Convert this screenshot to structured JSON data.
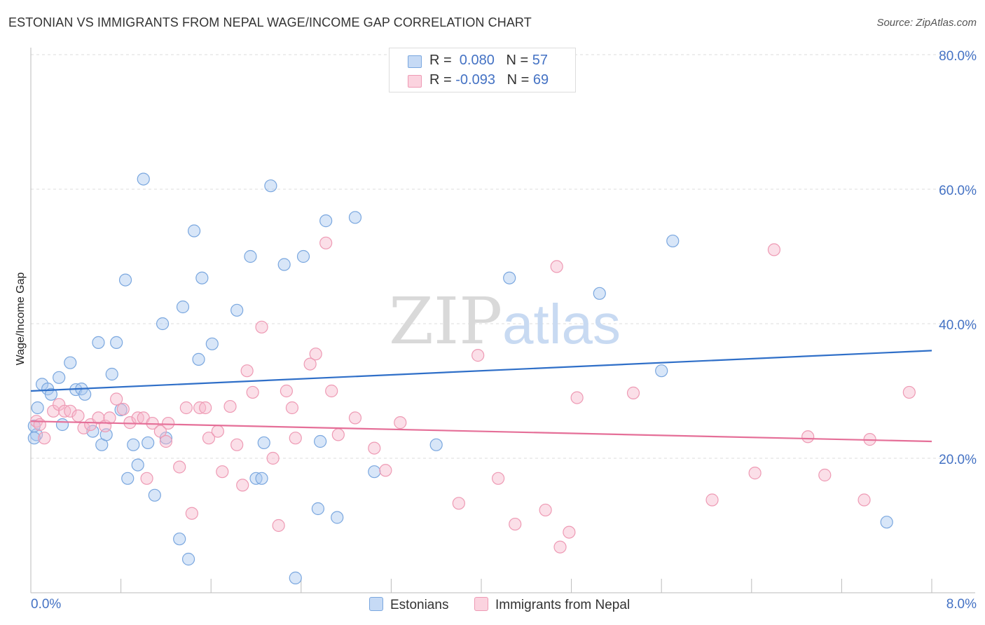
{
  "header": {
    "title": "ESTONIAN VS IMMIGRANTS FROM NEPAL WAGE/INCOME GAP CORRELATION CHART",
    "source": "Source: ZipAtlas.com"
  },
  "watermark": {
    "zip": "ZIP",
    "atlas": "atlas"
  },
  "colors": {
    "estonian_fill": "#a9c8ef",
    "estonian_stroke": "#7aa7df",
    "estonian_line": "#2f6fc8",
    "nepal_fill": "#f6b8cb",
    "nepal_stroke": "#ee9ab4",
    "nepal_line": "#e56f98",
    "tick_label": "#4472c4",
    "grid": "#dddddd"
  },
  "legend_top": {
    "rows": [
      {
        "r_label": "R = ",
        "r_value": " 0.080",
        "n_label": "N = ",
        "n_value": "57"
      },
      {
        "r_label": "R = ",
        "r_value": "-0.093",
        "n_label": "N = ",
        "n_value": "69"
      }
    ]
  },
  "legend_bottom": {
    "items": [
      {
        "label": "Estonians"
      },
      {
        "label": "Immigrants from Nepal"
      }
    ]
  },
  "chart_data": {
    "type": "scatter",
    "title": "ESTONIAN VS IMMIGRANTS FROM NEPAL WAGE/INCOME GAP CORRELATION CHART",
    "xlabel": "",
    "ylabel": "Wage/Income Gap",
    "xlim": [
      0,
      8
    ],
    "ylim": [
      0,
      80
    ],
    "x_tick_labels": [
      "0.0%",
      "8.0%"
    ],
    "y_ticks": [
      20,
      40,
      60,
      80
    ],
    "y_tick_labels": [
      "20.0%",
      "40.0%",
      "60.0%",
      "80.0%"
    ],
    "grid": true,
    "legend_position": "top-center",
    "series": [
      {
        "name": "Estonians",
        "r": 0.08,
        "n": 57,
        "trend": {
          "x": [
            0,
            8
          ],
          "y": [
            30.0,
            36.0
          ]
        },
        "points": [
          [
            0.05,
            23.5
          ],
          [
            0.06,
            27.5
          ],
          [
            0.1,
            31.0
          ],
          [
            0.15,
            30.3
          ],
          [
            0.18,
            29.5
          ],
          [
            0.25,
            32.0
          ],
          [
            0.28,
            25.0
          ],
          [
            0.35,
            34.2
          ],
          [
            0.4,
            30.2
          ],
          [
            0.45,
            30.3
          ],
          [
            0.48,
            29.5
          ],
          [
            0.55,
            24.0
          ],
          [
            0.6,
            37.2
          ],
          [
            0.63,
            22.0
          ],
          [
            0.67,
            23.5
          ],
          [
            0.72,
            32.5
          ],
          [
            0.76,
            37.2
          ],
          [
            0.8,
            27.2
          ],
          [
            0.84,
            46.5
          ],
          [
            0.86,
            17.0
          ],
          [
            0.91,
            22.0
          ],
          [
            0.95,
            19.0
          ],
          [
            1.0,
            61.5
          ],
          [
            1.04,
            22.3
          ],
          [
            1.1,
            14.5
          ],
          [
            1.17,
            40.0
          ],
          [
            1.2,
            23.0
          ],
          [
            1.32,
            8.0
          ],
          [
            1.35,
            42.5
          ],
          [
            1.4,
            5.0
          ],
          [
            1.45,
            53.8
          ],
          [
            1.49,
            34.7
          ],
          [
            1.52,
            46.8
          ],
          [
            1.61,
            37.0
          ],
          [
            1.83,
            42.0
          ],
          [
            1.95,
            50.0
          ],
          [
            2.0,
            17.0
          ],
          [
            2.05,
            17.0
          ],
          [
            2.07,
            22.3
          ],
          [
            2.13,
            60.5
          ],
          [
            2.25,
            48.8
          ],
          [
            2.35,
            2.2
          ],
          [
            2.42,
            50.0
          ],
          [
            2.55,
            12.5
          ],
          [
            2.57,
            22.5
          ],
          [
            2.62,
            55.3
          ],
          [
            2.72,
            11.2
          ],
          [
            2.88,
            55.8
          ],
          [
            3.05,
            18.0
          ],
          [
            3.6,
            22.0
          ],
          [
            4.25,
            46.8
          ],
          [
            5.05,
            44.5
          ],
          [
            5.6,
            33.0
          ],
          [
            5.7,
            52.3
          ],
          [
            7.6,
            10.5
          ],
          [
            0.03,
            24.8
          ],
          [
            0.03,
            23.0
          ]
        ]
      },
      {
        "name": "Immigrants from Nepal",
        "r": -0.093,
        "n": 69,
        "trend": {
          "x": [
            0,
            8
          ],
          "y": [
            25.5,
            22.5
          ]
        },
        "points": [
          [
            0.05,
            25.5
          ],
          [
            0.08,
            25.0
          ],
          [
            0.12,
            23.0
          ],
          [
            0.2,
            27.0
          ],
          [
            0.25,
            28.0
          ],
          [
            0.3,
            27.0
          ],
          [
            0.35,
            27.0
          ],
          [
            0.42,
            26.3
          ],
          [
            0.47,
            24.5
          ],
          [
            0.53,
            25.0
          ],
          [
            0.6,
            26.0
          ],
          [
            0.66,
            24.8
          ],
          [
            0.7,
            26.0
          ],
          [
            0.76,
            28.8
          ],
          [
            0.82,
            27.3
          ],
          [
            0.88,
            25.3
          ],
          [
            0.95,
            26.0
          ],
          [
            1.0,
            26.0
          ],
          [
            1.03,
            17.0
          ],
          [
            1.08,
            25.2
          ],
          [
            1.15,
            24.0
          ],
          [
            1.2,
            22.5
          ],
          [
            1.22,
            25.2
          ],
          [
            1.32,
            18.7
          ],
          [
            1.38,
            27.5
          ],
          [
            1.43,
            11.8
          ],
          [
            1.5,
            27.5
          ],
          [
            1.55,
            27.5
          ],
          [
            1.58,
            23.0
          ],
          [
            1.66,
            24.0
          ],
          [
            1.7,
            18.0
          ],
          [
            1.77,
            27.7
          ],
          [
            1.83,
            22.0
          ],
          [
            1.88,
            16.0
          ],
          [
            1.92,
            33.0
          ],
          [
            1.97,
            29.8
          ],
          [
            2.05,
            39.5
          ],
          [
            2.15,
            20.0
          ],
          [
            2.2,
            10.0
          ],
          [
            2.27,
            30.0
          ],
          [
            2.32,
            27.5
          ],
          [
            2.35,
            23.0
          ],
          [
            2.48,
            34.0
          ],
          [
            2.53,
            35.5
          ],
          [
            2.62,
            52.0
          ],
          [
            2.67,
            30.0
          ],
          [
            2.73,
            23.5
          ],
          [
            2.88,
            26.0
          ],
          [
            3.05,
            21.5
          ],
          [
            3.15,
            18.2
          ],
          [
            3.28,
            25.3
          ],
          [
            3.8,
            13.3
          ],
          [
            3.97,
            35.3
          ],
          [
            4.15,
            17.0
          ],
          [
            4.3,
            10.2
          ],
          [
            4.57,
            12.3
          ],
          [
            4.67,
            48.5
          ],
          [
            4.7,
            6.8
          ],
          [
            4.78,
            9.0
          ],
          [
            4.85,
            29.0
          ],
          [
            5.35,
            29.7
          ],
          [
            6.05,
            13.8
          ],
          [
            6.43,
            17.8
          ],
          [
            6.6,
            51.0
          ],
          [
            6.9,
            23.2
          ],
          [
            7.05,
            17.5
          ],
          [
            7.4,
            13.8
          ],
          [
            7.45,
            22.8
          ],
          [
            7.8,
            29.8
          ]
        ]
      }
    ]
  }
}
